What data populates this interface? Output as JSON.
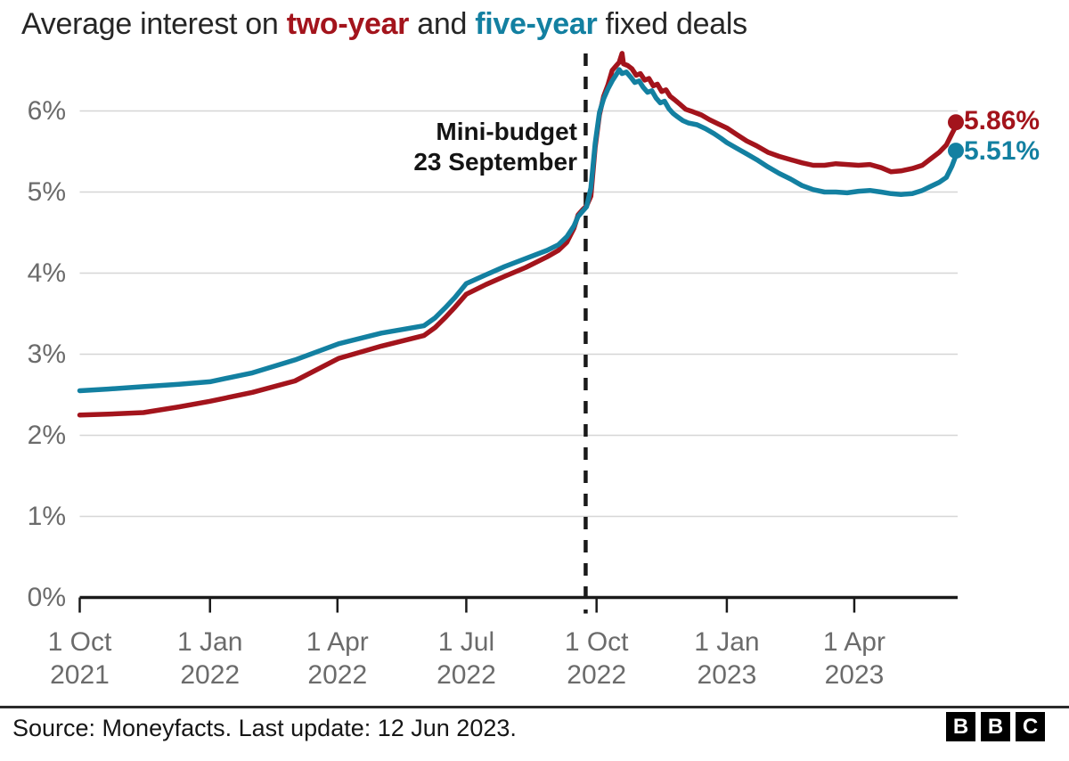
{
  "title": {
    "prefix": "Average interest on ",
    "series1": "two-year",
    "middle": " and ",
    "series2": "five-year",
    "suffix": " fixed deals"
  },
  "annotation": {
    "line1": "Mini-budget",
    "line2": "23 September"
  },
  "end_labels": {
    "two_year": "5.86%",
    "five_year": "5.51%"
  },
  "footer": {
    "source": "Source: Moneyfacts. Last update: 12 Jun 2023.",
    "logo": [
      "B",
      "B",
      "C"
    ]
  },
  "colors": {
    "two_year": "#a3141c",
    "five_year": "#1380a1",
    "grid": "#d6d6d6",
    "axis": "#1a1a1a",
    "tick_label": "#6b6b6b",
    "annotation": "#141414"
  },
  "chart_data": {
    "type": "line",
    "title": "Average interest on two-year and five-year fixed deals",
    "x_unit": "days since 1 Oct 2021",
    "ylim": [
      0,
      6.8
    ],
    "grid": true,
    "yticks": [
      {
        "value": 0,
        "label": "0%"
      },
      {
        "value": 1,
        "label": "1%"
      },
      {
        "value": 2,
        "label": "2%"
      },
      {
        "value": 3,
        "label": "3%"
      },
      {
        "value": 4,
        "label": "4%"
      },
      {
        "value": 5,
        "label": "5%"
      },
      {
        "value": 6,
        "label": "6%"
      }
    ],
    "xticks": [
      {
        "day": 0,
        "line1": "1 Oct",
        "line2": "2021"
      },
      {
        "day": 92,
        "line1": "1 Jan",
        "line2": "2022"
      },
      {
        "day": 182,
        "line1": "1 Apr",
        "line2": "2022"
      },
      {
        "day": 273,
        "line1": "1 Jul",
        "line2": "2022"
      },
      {
        "day": 365,
        "line1": "1 Oct",
        "line2": "2022"
      },
      {
        "day": 457,
        "line1": "1 Jan",
        "line2": "2023"
      },
      {
        "day": 547,
        "line1": "1 Apr",
        "line2": "2023"
      }
    ],
    "event_line": {
      "day": 357.3,
      "label": [
        "Mini-budget",
        "23 September"
      ]
    },
    "series": [
      {
        "name": "two-year fixed",
        "color": "#a3141c",
        "end_label": "5.86%",
        "end_value": 5.86,
        "points": [
          [
            0,
            2.25
          ],
          [
            20,
            2.26
          ],
          [
            45,
            2.28
          ],
          [
            70,
            2.35
          ],
          [
            92,
            2.42
          ],
          [
            122,
            2.53
          ],
          [
            152,
            2.67
          ],
          [
            183,
            2.95
          ],
          [
            213,
            3.1
          ],
          [
            243,
            3.23
          ],
          [
            251,
            3.33
          ],
          [
            258,
            3.45
          ],
          [
            265,
            3.58
          ],
          [
            273,
            3.74
          ],
          [
            287,
            3.86
          ],
          [
            300,
            3.96
          ],
          [
            315,
            4.07
          ],
          [
            330,
            4.2
          ],
          [
            338,
            4.28
          ],
          [
            344,
            4.38
          ],
          [
            349,
            4.55
          ],
          [
            352,
            4.72
          ],
          [
            355,
            4.78
          ],
          [
            358,
            4.83
          ],
          [
            361,
            4.95
          ],
          [
            364,
            5.55
          ],
          [
            367,
            5.95
          ],
          [
            370,
            6.18
          ],
          [
            373,
            6.32
          ],
          [
            376,
            6.5
          ],
          [
            379,
            6.56
          ],
          [
            381,
            6.6
          ],
          [
            383,
            6.71
          ],
          [
            384,
            6.58
          ],
          [
            387,
            6.56
          ],
          [
            390,
            6.52
          ],
          [
            393,
            6.44
          ],
          [
            396,
            6.46
          ],
          [
            399,
            6.38
          ],
          [
            402,
            6.4
          ],
          [
            405,
            6.31
          ],
          [
            408,
            6.33
          ],
          [
            411,
            6.24
          ],
          [
            414,
            6.26
          ],
          [
            417,
            6.18
          ],
          [
            420,
            6.14
          ],
          [
            424,
            6.08
          ],
          [
            428,
            6.02
          ],
          [
            433,
            5.99
          ],
          [
            439,
            5.95
          ],
          [
            445,
            5.89
          ],
          [
            451,
            5.84
          ],
          [
            457,
            5.79
          ],
          [
            464,
            5.71
          ],
          [
            471,
            5.63
          ],
          [
            478,
            5.57
          ],
          [
            486,
            5.49
          ],
          [
            494,
            5.44
          ],
          [
            502,
            5.4
          ],
          [
            510,
            5.36
          ],
          [
            518,
            5.33
          ],
          [
            526,
            5.33
          ],
          [
            534,
            5.35
          ],
          [
            542,
            5.34
          ],
          [
            550,
            5.33
          ],
          [
            558,
            5.34
          ],
          [
            566,
            5.3
          ],
          [
            573,
            5.25
          ],
          [
            580,
            5.26
          ],
          [
            588,
            5.29
          ],
          [
            595,
            5.33
          ],
          [
            601,
            5.41
          ],
          [
            607,
            5.49
          ],
          [
            612,
            5.58
          ],
          [
            616,
            5.72
          ],
          [
            619,
            5.82
          ],
          [
            620,
            5.86
          ]
        ]
      },
      {
        "name": "five-year fixed",
        "color": "#1380a1",
        "end_label": "5.51%",
        "end_value": 5.51,
        "points": [
          [
            0,
            2.55
          ],
          [
            20,
            2.57
          ],
          [
            45,
            2.6
          ],
          [
            70,
            2.63
          ],
          [
            92,
            2.66
          ],
          [
            122,
            2.77
          ],
          [
            152,
            2.93
          ],
          [
            183,
            3.13
          ],
          [
            213,
            3.26
          ],
          [
            243,
            3.35
          ],
          [
            251,
            3.45
          ],
          [
            258,
            3.57
          ],
          [
            265,
            3.7
          ],
          [
            273,
            3.87
          ],
          [
            287,
            3.98
          ],
          [
            300,
            4.08
          ],
          [
            315,
            4.18
          ],
          [
            330,
            4.28
          ],
          [
            338,
            4.35
          ],
          [
            344,
            4.45
          ],
          [
            349,
            4.58
          ],
          [
            352,
            4.7
          ],
          [
            355,
            4.76
          ],
          [
            358,
            4.82
          ],
          [
            361,
            5.05
          ],
          [
            364,
            5.6
          ],
          [
            367,
            5.98
          ],
          [
            370,
            6.15
          ],
          [
            373,
            6.27
          ],
          [
            376,
            6.37
          ],
          [
            379,
            6.45
          ],
          [
            381,
            6.51
          ],
          [
            383,
            6.46
          ],
          [
            386,
            6.48
          ],
          [
            389,
            6.42
          ],
          [
            392,
            6.35
          ],
          [
            395,
            6.37
          ],
          [
            398,
            6.29
          ],
          [
            401,
            6.23
          ],
          [
            404,
            6.25
          ],
          [
            407,
            6.16
          ],
          [
            410,
            6.1
          ],
          [
            413,
            6.12
          ],
          [
            416,
            6.03
          ],
          [
            419,
            5.97
          ],
          [
            422,
            5.93
          ],
          [
            426,
            5.88
          ],
          [
            430,
            5.85
          ],
          [
            436,
            5.83
          ],
          [
            442,
            5.78
          ],
          [
            448,
            5.72
          ],
          [
            453,
            5.66
          ],
          [
            457,
            5.61
          ],
          [
            464,
            5.54
          ],
          [
            471,
            5.47
          ],
          [
            478,
            5.4
          ],
          [
            486,
            5.31
          ],
          [
            494,
            5.23
          ],
          [
            502,
            5.16
          ],
          [
            510,
            5.08
          ],
          [
            518,
            5.03
          ],
          [
            526,
            5.0
          ],
          [
            534,
            5.0
          ],
          [
            542,
            4.99
          ],
          [
            550,
            5.01
          ],
          [
            558,
            5.02
          ],
          [
            566,
            5.0
          ],
          [
            573,
            4.98
          ],
          [
            580,
            4.97
          ],
          [
            588,
            4.98
          ],
          [
            595,
            5.02
          ],
          [
            601,
            5.07
          ],
          [
            607,
            5.12
          ],
          [
            612,
            5.18
          ],
          [
            616,
            5.32
          ],
          [
            619,
            5.46
          ],
          [
            620,
            5.51
          ]
        ]
      }
    ],
    "legend_position": "end-of-line labels"
  }
}
